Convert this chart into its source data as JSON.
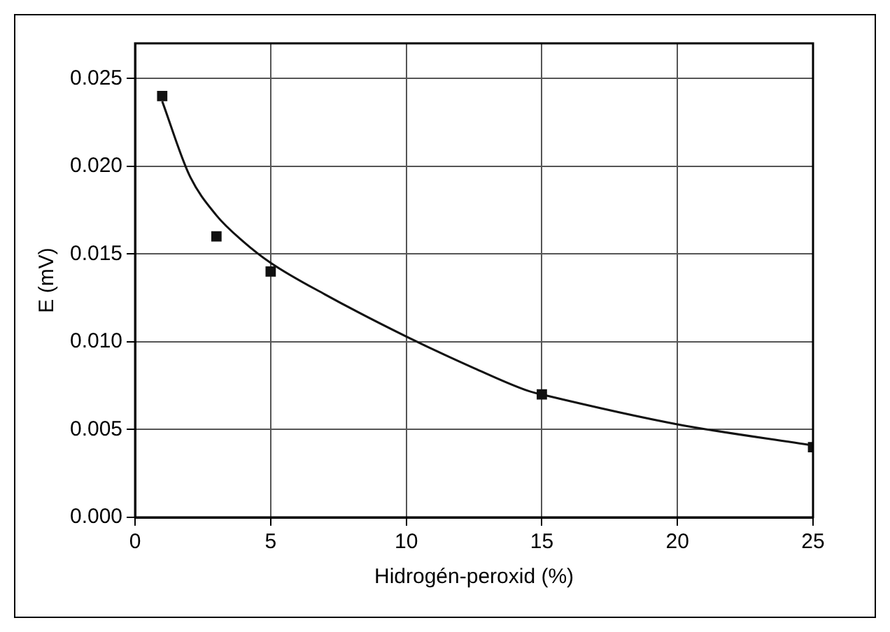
{
  "chart_data": {
    "type": "scatter",
    "xlabel": "Hidrogén-peroxid (%)",
    "ylabel": "E (mV)",
    "xlim": [
      0,
      25
    ],
    "xticks": [
      0,
      5,
      10,
      15,
      20,
      25
    ],
    "ylim": [
      0,
      0.027
    ],
    "yticks": [
      {
        "value": 0,
        "label": "0.000"
      },
      {
        "value": 0.005,
        "label": "0.005"
      },
      {
        "value": 0.01,
        "label": "0.010"
      },
      {
        "value": 0.015,
        "label": "0.015"
      },
      {
        "value": 0.02,
        "label": "0.020"
      },
      {
        "value": 0.025,
        "label": "0.025"
      }
    ],
    "grid": true,
    "legend": false,
    "marker": "square",
    "series": [
      {
        "type": "scatter",
        "color": "#111111",
        "x": [
          1,
          3,
          5,
          15,
          25
        ],
        "values": [
          0.024,
          0.016,
          0.014,
          0.007,
          0.004
        ]
      },
      {
        "type": "line",
        "color": "#111111",
        "marker": "none",
        "x": [
          1,
          2,
          3,
          4,
          5,
          7,
          10,
          12.5,
          14.5,
          15,
          20,
          25
        ],
        "values": [
          0.0237,
          0.0195,
          0.0172,
          0.0157,
          0.0145,
          0.0127,
          0.0103,
          0.0085,
          0.0072,
          0.007,
          0.0053,
          0.0041
        ]
      }
    ]
  }
}
